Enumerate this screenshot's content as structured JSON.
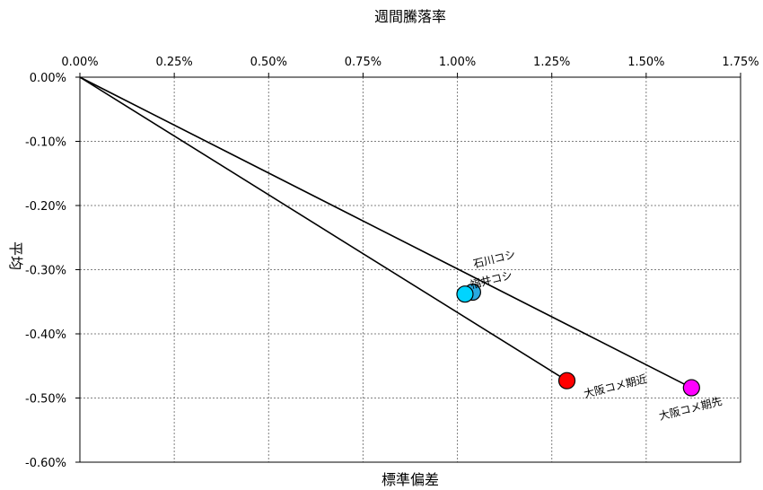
{
  "chart_data": {
    "type": "scatter",
    "title": "週間騰落率",
    "xlabel": "標準偏差",
    "ylabel": "平均",
    "xlim": [
      0,
      1.75
    ],
    "ylim": [
      -0.6,
      0
    ],
    "x_ticks": [
      "0.00%",
      "0.25%",
      "0.50%",
      "0.75%",
      "1.00%",
      "1.25%",
      "1.50%",
      "1.75%"
    ],
    "y_ticks": [
      "0.00%",
      "-0.10%",
      "-0.20%",
      "-0.30%",
      "-0.40%",
      "-0.50%",
      "-0.60%"
    ],
    "x_axis_position": "top",
    "grid": true,
    "points": [
      {
        "label": "石川コシ",
        "x": 1.04,
        "y": -0.335,
        "color": "#29a9e0"
      },
      {
        "label": "福井コシ",
        "x": 1.02,
        "y": -0.338,
        "color": "#00d4ff"
      },
      {
        "label": "大阪コメ期近",
        "x": 1.29,
        "y": -0.473,
        "color": "#ff0000"
      },
      {
        "label": "大阪コメ期先",
        "x": 1.62,
        "y": -0.484,
        "color": "#ff00ff"
      }
    ],
    "lines": [
      {
        "from": [
          0,
          0
        ],
        "to": [
          1.29,
          -0.473
        ]
      },
      {
        "from": [
          0,
          0
        ],
        "to": [
          1.62,
          -0.484
        ]
      }
    ]
  }
}
